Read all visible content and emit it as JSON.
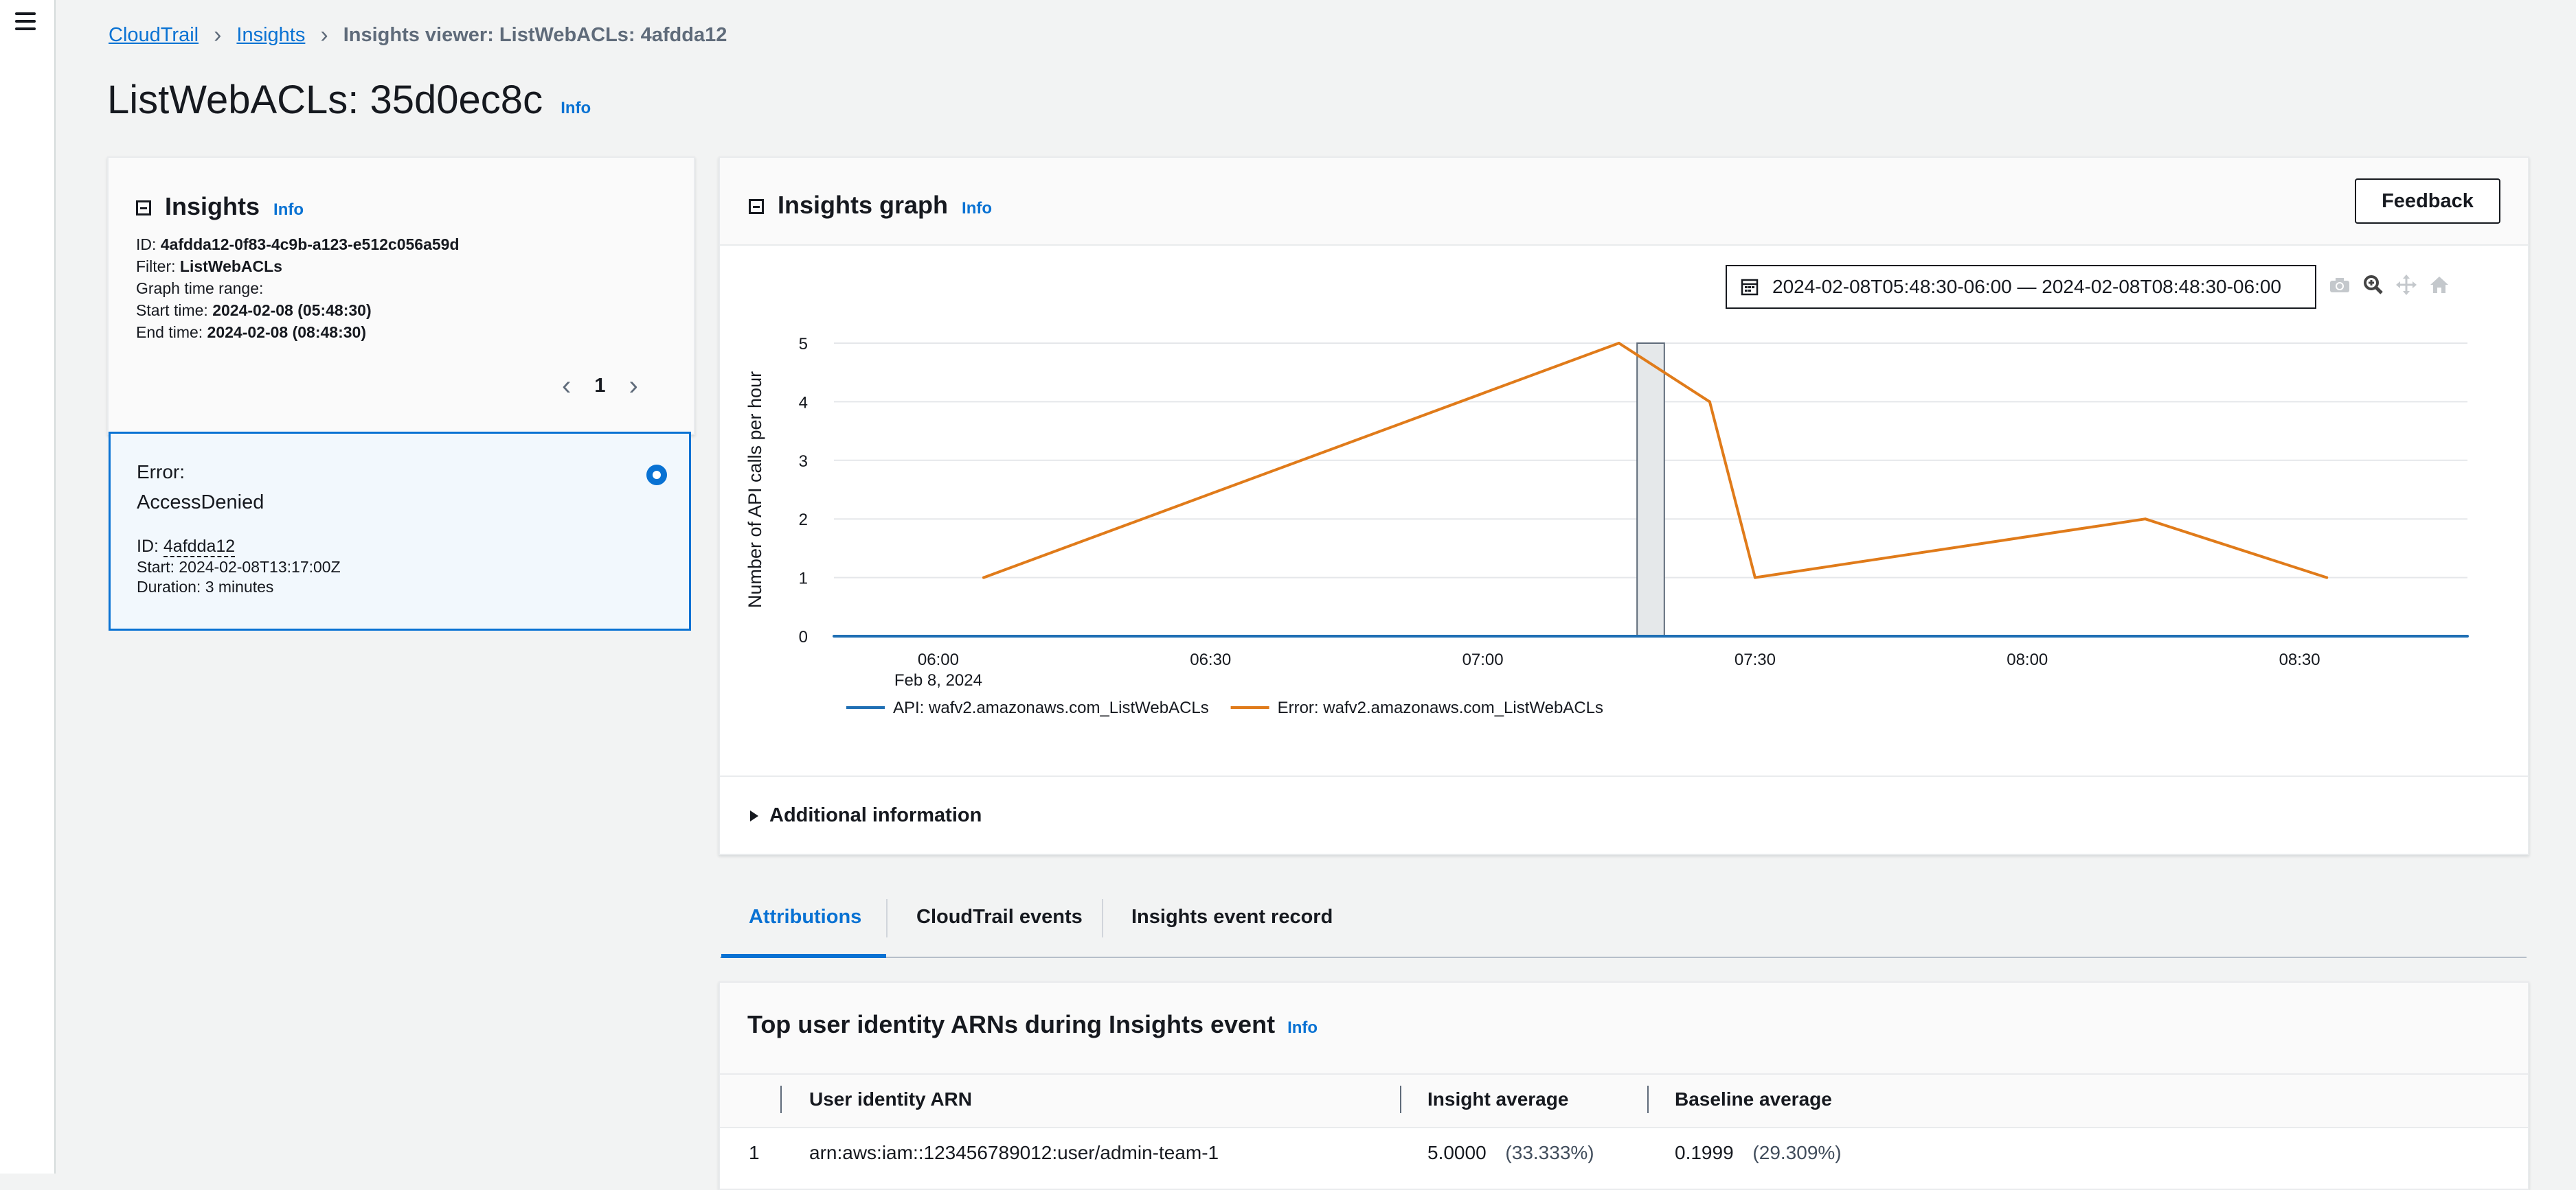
{
  "breadcrumb": {
    "root": "CloudTrail",
    "section": "Insights",
    "current": "Insights viewer: ListWebACLs: 4afdda12"
  },
  "page": {
    "title": "ListWebACLs: 35d0ec8c",
    "info": "Info"
  },
  "insights_panel": {
    "title": "Insights",
    "info": "Info",
    "id_label": "ID:",
    "id_value": "4afdda12-0f83-4c9b-a123-e512c056a59d",
    "filter_label": "Filter:",
    "filter_value": "ListWebACLs",
    "graph_range_label": "Graph time range:",
    "start_label": "Start time:",
    "start_value": "2024-02-08 (05:48:30)",
    "end_label": "End time:",
    "end_value": "2024-02-08 (08:48:30)",
    "page_number": "1"
  },
  "selected_card": {
    "error_label": "Error:",
    "error_value": "AccessDenied",
    "id_label": "ID:",
    "id_value": "4afdda12",
    "start_label": "Start:",
    "start_value": "2024-02-08T13:17:00Z",
    "duration_label": "Duration:",
    "duration_value": "3 minutes"
  },
  "graph_panel": {
    "title": "Insights graph",
    "info": "Info",
    "feedback_label": "Feedback",
    "date_range": "2024-02-08T05:48:30-06:00 — 2024-02-08T08:48:30-06:00",
    "toolbar_icons": [
      "camera-icon",
      "zoom-icon",
      "pan-icon",
      "home-icon"
    ],
    "additional_info": "Additional information"
  },
  "chart_data": {
    "type": "line",
    "ylabel": "Number of API calls per hour",
    "ylim": [
      0,
      5
    ],
    "yticks": [
      "0",
      "1",
      "2",
      "3",
      "4",
      "5"
    ],
    "xticks": [
      "06:00",
      "06:30",
      "07:00",
      "07:30",
      "08:00",
      "08:30"
    ],
    "x_sublabel": "Feb 8, 2024",
    "x_range": [
      "05:48:30",
      "08:48:30"
    ],
    "series": [
      {
        "name": "API: wafv2.amazonaws.com_ListWebACLs",
        "color": "#1f6fb4",
        "x": [
          "05:48:30",
          "08:48:30"
        ],
        "values": [
          0,
          0
        ]
      },
      {
        "name": "Error: wafv2.amazonaws.com_ListWebACLs",
        "color": "#e07b1a",
        "x": [
          "06:05",
          "07:15",
          "07:25",
          "07:30",
          "08:13",
          "08:33"
        ],
        "values": [
          1,
          5,
          4,
          1,
          2,
          1
        ]
      }
    ],
    "highlight": {
      "start": "07:17",
      "end": "07:20"
    },
    "grid": true,
    "legend": "bottom-left"
  },
  "tabs": [
    {
      "label": "Attributions",
      "active": true
    },
    {
      "label": "CloudTrail events",
      "active": false
    },
    {
      "label": "Insights event record",
      "active": false
    }
  ],
  "attributions": {
    "title": "Top user identity ARNs during Insights event",
    "info": "Info",
    "columns": [
      "User identity ARN",
      "Insight average",
      "Baseline average"
    ],
    "rows": [
      {
        "rank": "1",
        "arn": "arn:aws:iam::123456789012:user/admin-team-1",
        "insight_avg": "5.0000",
        "insight_pct": "(33.333%)",
        "baseline_avg": "0.1999",
        "baseline_pct": "(29.309%)"
      }
    ]
  }
}
